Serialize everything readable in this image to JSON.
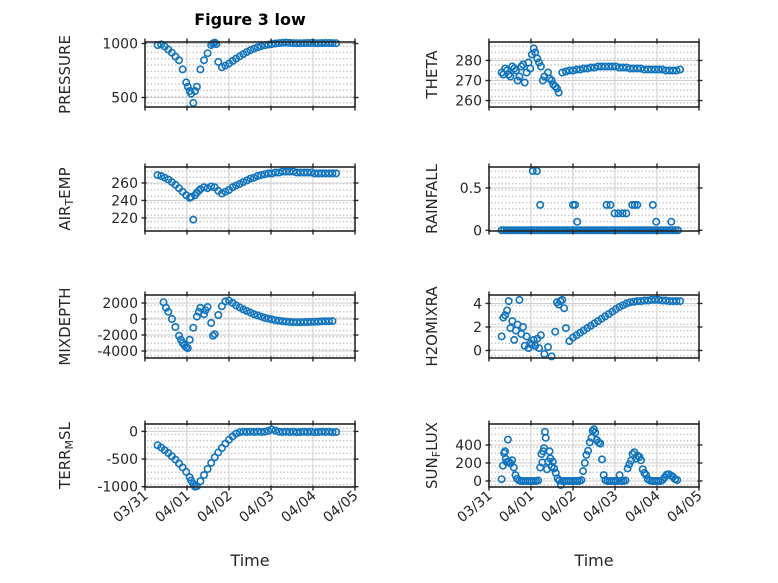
{
  "figure": {
    "title": "Figure 3 low",
    "background_color": "#ffffff",
    "marker_color": "#1274bd",
    "frame_color": "#262626",
    "major_grid_color": "#cfcfcf",
    "minor_grid_color": "#c9c9c9",
    "text_color": "#262626",
    "grid": "major solid + minor dotted lattice",
    "marker_style": "open circle"
  },
  "x_axis": {
    "label": "Time",
    "tick_labels": [
      "03/31",
      "04/01",
      "04/02",
      "04/03",
      "04/04",
      "04/05"
    ],
    "tick_values": [
      0,
      1,
      2,
      3,
      4,
      5
    ],
    "range_days": [
      0,
      5
    ]
  },
  "chart_data": [
    {
      "id": "pressure",
      "type": "scatter",
      "row": 0,
      "col": 0,
      "ylabel": "PRESSURE",
      "ylabel_parts": [
        {
          "t": "PRESSURE",
          "sub": false
        }
      ],
      "ytick_labels": [
        "500",
        "1000"
      ],
      "ytick_values": [
        500,
        1000
      ],
      "ylim": [
        412,
        1014
      ],
      "x": [
        0.3,
        0.385,
        0.47,
        0.555,
        0.64,
        0.725,
        0.81,
        0.895,
        0.98,
        1.02,
        1.065,
        1.1,
        1.15,
        1.19,
        1.235,
        1.32,
        1.405,
        1.49,
        1.575,
        1.62,
        1.66,
        1.7,
        1.745,
        1.83,
        1.915,
        2.0,
        2.085,
        2.17,
        2.255,
        2.34,
        2.425,
        2.51,
        2.595,
        2.68,
        2.765,
        2.85,
        2.935,
        3.02,
        3.105,
        3.19,
        3.275,
        3.36,
        3.445,
        3.53,
        3.615,
        3.7,
        3.785,
        3.87,
        3.955,
        4.04,
        4.125,
        4.21,
        4.295,
        4.38,
        4.465,
        4.55
      ],
      "y": [
        985,
        992,
        972,
        945,
        915,
        880,
        845,
        760,
        640,
        600,
        560,
        535,
        450,
        560,
        600,
        760,
        845,
        910,
        985,
        1000,
        1008,
        995,
        830,
        780,
        795,
        815,
        838,
        860,
        882,
        902,
        920,
        938,
        953,
        965,
        975,
        983,
        990,
        995,
        1000,
        1004,
        1007,
        1008,
        1006,
        1004,
        1003,
        1003,
        1004,
        1005,
        1005,
        1004,
        1003,
        1004,
        1005,
        1005,
        1004,
        1003
      ]
    },
    {
      "id": "theta",
      "type": "scatter",
      "row": 0,
      "col": 1,
      "ylabel": "THETA",
      "ylabel_parts": [
        {
          "t": "THETA",
          "sub": false
        }
      ],
      "ytick_labels": [
        "260",
        "270",
        "280"
      ],
      "ytick_values": [
        260,
        270,
        280
      ],
      "ylim": [
        256.8,
        289.2
      ],
      "x": [
        0.3,
        0.34,
        0.385,
        0.43,
        0.47,
        0.51,
        0.555,
        0.6,
        0.64,
        0.68,
        0.725,
        0.77,
        0.81,
        0.85,
        0.895,
        0.94,
        0.98,
        1.02,
        1.065,
        1.1,
        1.15,
        1.19,
        1.235,
        1.28,
        1.32,
        1.405,
        1.44,
        1.49,
        1.53,
        1.575,
        1.62,
        1.66,
        1.745,
        1.83,
        1.915,
        2.0,
        2.085,
        2.17,
        2.255,
        2.34,
        2.425,
        2.51,
        2.595,
        2.68,
        2.765,
        2.85,
        2.935,
        3.02,
        3.105,
        3.19,
        3.275,
        3.36,
        3.445,
        3.53,
        3.615,
        3.7,
        3.785,
        3.87,
        3.955,
        4.04,
        4.125,
        4.21,
        4.295,
        4.38,
        4.465,
        4.55
      ],
      "y": [
        274,
        273,
        276,
        275,
        273,
        272,
        277,
        276,
        275,
        270,
        272,
        277,
        278,
        269,
        274,
        279,
        276,
        283,
        286,
        284,
        281,
        279,
        277,
        270,
        272,
        274,
        271,
        270,
        268,
        267,
        266,
        264,
        274,
        274.5,
        275,
        275,
        275.5,
        275.5,
        276,
        276,
        276.5,
        276.5,
        277,
        277,
        277,
        277,
        277,
        277,
        276.5,
        276.5,
        276.5,
        276,
        276,
        276,
        276,
        275.5,
        275.5,
        275.5,
        275.5,
        275.5,
        275.5,
        275,
        275,
        275,
        275,
        275.5
      ]
    },
    {
      "id": "airtemp",
      "type": "scatter",
      "row": 1,
      "col": 0,
      "ylabel": "AIR_TEMP",
      "ylabel_parts": [
        {
          "t": "AIR",
          "sub": false
        },
        {
          "t": "T",
          "sub": true
        },
        {
          "t": "EMP",
          "sub": false
        }
      ],
      "ytick_labels": [
        "220",
        "240",
        "260"
      ],
      "ytick_values": [
        220,
        240,
        260
      ],
      "ylim": [
        205,
        278.3
      ],
      "x": [
        0.3,
        0.385,
        0.47,
        0.555,
        0.64,
        0.725,
        0.81,
        0.895,
        0.98,
        1.065,
        1.1,
        1.15,
        1.19,
        1.235,
        1.28,
        1.32,
        1.405,
        1.49,
        1.575,
        1.66,
        1.745,
        1.83,
        1.915,
        2.0,
        2.085,
        2.17,
        2.255,
        2.34,
        2.425,
        2.51,
        2.595,
        2.68,
        2.765,
        2.85,
        2.935,
        3.02,
        3.105,
        3.19,
        3.275,
        3.36,
        3.445,
        3.53,
        3.615,
        3.7,
        3.785,
        3.87,
        3.955,
        4.04,
        4.125,
        4.21,
        4.295,
        4.38,
        4.465,
        4.55
      ],
      "y": [
        269,
        268,
        266,
        264,
        261,
        258,
        254,
        250,
        246,
        243,
        244,
        218,
        246,
        249,
        251,
        253,
        255,
        254,
        256,
        255,
        251,
        248,
        250,
        252,
        255,
        257,
        259,
        261,
        263,
        265,
        266,
        268,
        269,
        270,
        271,
        271,
        272,
        272,
        273,
        273,
        273,
        273,
        272,
        272,
        272,
        272,
        272,
        271,
        271,
        271,
        271,
        271,
        271,
        271
      ]
    },
    {
      "id": "rainfall",
      "type": "scatter",
      "row": 1,
      "col": 1,
      "ylabel": "RAINFALL",
      "ylabel_parts": [
        {
          "t": "RAINFALL",
          "sub": false
        }
      ],
      "ytick_labels": [
        "0",
        "0.5"
      ],
      "ytick_values": [
        0,
        0.5
      ],
      "ylim": [
        -0.008,
        0.747
      ],
      "x": [
        0.3,
        0.36,
        0.42,
        0.48,
        0.54,
        0.6,
        0.66,
        0.72,
        0.78,
        0.84,
        0.9,
        0.96,
        1.02,
        1.08,
        1.14,
        1.2,
        1.26,
        1.32,
        1.38,
        1.44,
        1.5,
        1.56,
        1.62,
        1.68,
        1.74,
        1.8,
        1.86,
        1.92,
        1.98,
        2.04,
        2.1,
        2.16,
        2.22,
        2.28,
        2.34,
        2.4,
        2.46,
        2.52,
        2.58,
        2.64,
        2.7,
        2.76,
        2.82,
        2.88,
        2.94,
        3.0,
        3.06,
        3.12,
        3.18,
        3.24,
        3.3,
        3.36,
        3.42,
        3.48,
        3.54,
        3.6,
        3.66,
        3.72,
        3.78,
        3.84,
        3.9,
        3.96,
        4.02,
        4.08,
        4.14,
        4.2,
        4.26,
        4.32,
        4.38,
        4.44,
        4.5,
        1.04,
        1.14,
        1.22,
        2.0,
        2.05,
        2.1,
        2.8,
        2.89,
        2.99,
        3.08,
        3.18,
        3.27,
        3.41,
        3.47,
        3.53,
        3.9,
        3.98,
        4.34
      ],
      "y": [
        0,
        0,
        0,
        0,
        0,
        0,
        0,
        0,
        0,
        0,
        0,
        0,
        0,
        0,
        0,
        0,
        0,
        0,
        0,
        0,
        0,
        0,
        0,
        0,
        0,
        0,
        0,
        0,
        0,
        0,
        0,
        0,
        0,
        0,
        0,
        0,
        0,
        0,
        0,
        0,
        0,
        0,
        0,
        0,
        0,
        0,
        0,
        0,
        0,
        0,
        0,
        0,
        0,
        0,
        0,
        0,
        0,
        0,
        0,
        0,
        0,
        0,
        0,
        0,
        0,
        0,
        0,
        0,
        0,
        0,
        0,
        0.7,
        0.7,
        0.3,
        0.3,
        0.3,
        0.1,
        0.3,
        0.3,
        0.2,
        0.2,
        0.2,
        0.2,
        0.3,
        0.3,
        0.3,
        0.3,
        0.1,
        0.1
      ]
    },
    {
      "id": "mixdepth",
      "type": "scatter",
      "row": 2,
      "col": 0,
      "ylabel": "MIXDEPTH",
      "ylabel_parts": [
        {
          "t": "MIXDEPTH",
          "sub": false
        }
      ],
      "ytick_labels": [
        "-4000",
        "-2000",
        "0",
        "2000"
      ],
      "ytick_values": [
        -4000,
        -2000,
        0,
        2000
      ],
      "ylim": [
        -4875,
        3000
      ],
      "x": [
        0.44,
        0.5,
        0.555,
        0.64,
        0.725,
        0.81,
        0.855,
        0.895,
        0.94,
        0.98,
        1.02,
        1.065,
        1.15,
        1.235,
        1.28,
        1.32,
        1.405,
        1.44,
        1.49,
        1.575,
        1.62,
        1.66,
        1.745,
        1.83,
        1.915,
        2.0,
        2.085,
        2.17,
        2.255,
        2.34,
        2.425,
        2.51,
        2.595,
        2.68,
        2.765,
        2.85,
        2.935,
        3.02,
        3.105,
        3.19,
        3.275,
        3.36,
        3.445,
        3.53,
        3.615,
        3.7,
        3.785,
        3.87,
        3.955,
        4.04,
        4.125,
        4.21,
        4.295,
        4.38,
        4.465
      ],
      "y": [
        2100,
        1400,
        900,
        0,
        -1000,
        -2100,
        -2600,
        -3000,
        -3300,
        -3500,
        -3650,
        -2600,
        -1100,
        300,
        900,
        1400,
        600,
        1100,
        1500,
        -500,
        -2100,
        -1900,
        500,
        1600,
        2200,
        2300,
        2000,
        1700,
        1450,
        1200,
        1000,
        800,
        600,
        450,
        300,
        150,
        50,
        -50,
        -150,
        -220,
        -280,
        -330,
        -360,
        -390,
        -400,
        -400,
        -390,
        -380,
        -360,
        -340,
        -320,
        -300,
        -290,
        -280,
        -260
      ]
    },
    {
      "id": "h2omixra",
      "type": "scatter",
      "row": 2,
      "col": 1,
      "ylabel": "H2OMIXRA",
      "ylabel_parts": [
        {
          "t": "H2OMIXRA",
          "sub": false
        }
      ],
      "ytick_labels": [
        "0",
        "2",
        "4"
      ],
      "ytick_values": [
        0,
        2,
        4
      ],
      "ylim": [
        -0.64,
        4.72
      ],
      "x": [
        0.3,
        0.34,
        0.385,
        0.43,
        0.47,
        0.51,
        0.555,
        0.6,
        0.64,
        0.68,
        0.725,
        0.77,
        0.81,
        0.85,
        0.895,
        0.94,
        0.98,
        1.02,
        1.065,
        1.1,
        1.15,
        1.19,
        1.235,
        1.32,
        1.405,
        1.49,
        1.575,
        1.62,
        1.66,
        1.7,
        1.745,
        1.79,
        1.83,
        1.915,
        2.0,
        2.085,
        2.17,
        2.255,
        2.34,
        2.425,
        2.51,
        2.595,
        2.68,
        2.765,
        2.85,
        2.935,
        3.02,
        3.105,
        3.19,
        3.275,
        3.36,
        3.445,
        3.53,
        3.615,
        3.7,
        3.785,
        3.87,
        3.955,
        4.04,
        4.125,
        4.21,
        4.295,
        4.38,
        4.465,
        4.55
      ],
      "y": [
        1.2,
        2.8,
        3.0,
        3.4,
        4.2,
        1.9,
        2.5,
        0.9,
        1.7,
        2.2,
        4.3,
        1.4,
        2.0,
        0.4,
        1.2,
        0.2,
        0.6,
        0.5,
        0.9,
        0.4,
        1.0,
        0.2,
        1.3,
        -0.3,
        0.3,
        -0.5,
        1.6,
        4.1,
        3.9,
        4.2,
        4.3,
        3.6,
        1.9,
        0.8,
        1.1,
        1.3,
        1.5,
        1.7,
        1.9,
        2.1,
        2.3,
        2.5,
        2.7,
        2.9,
        3.1,
        3.3,
        3.5,
        3.7,
        3.85,
        4.0,
        4.1,
        4.15,
        4.2,
        4.2,
        4.25,
        4.25,
        4.3,
        4.3,
        4.3,
        4.25,
        4.25,
        4.2,
        4.2,
        4.2,
        4.2
      ]
    },
    {
      "id": "terrmsl",
      "type": "scatter",
      "row": 3,
      "col": 0,
      "ylabel": "TERR_MSL",
      "ylabel_parts": [
        {
          "t": "TERR",
          "sub": false
        },
        {
          "t": "M",
          "sub": true
        },
        {
          "t": "SL",
          "sub": false
        }
      ],
      "ytick_labels": [
        "-1000",
        "-500",
        "0"
      ],
      "ytick_values": [
        -1000,
        -500,
        0
      ],
      "ylim": [
        -1005,
        134
      ],
      "x": [
        0.3,
        0.385,
        0.47,
        0.555,
        0.64,
        0.725,
        0.81,
        0.895,
        0.98,
        1.065,
        1.1,
        1.15,
        1.19,
        1.235,
        1.32,
        1.405,
        1.49,
        1.575,
        1.66,
        1.745,
        1.83,
        1.915,
        2.0,
        2.085,
        2.17,
        2.255,
        2.34,
        2.425,
        2.51,
        2.595,
        2.68,
        2.765,
        2.85,
        2.935,
        3.02,
        3.105,
        3.19,
        3.275,
        3.36,
        3.445,
        3.53,
        3.615,
        3.7,
        3.785,
        3.87,
        3.955,
        4.04,
        4.125,
        4.21,
        4.295,
        4.38,
        4.465,
        4.55
      ],
      "y": [
        -250,
        -290,
        -340,
        -390,
        -450,
        -510,
        -580,
        -650,
        -730,
        -830,
        -890,
        -950,
        -1000,
        -990,
        -900,
        -790,
        -680,
        -570,
        -470,
        -380,
        -300,
        -220,
        -150,
        -90,
        -40,
        -15,
        -5,
        -10,
        -5,
        -10,
        -5,
        -10,
        -5,
        10,
        35,
        15,
        -5,
        -10,
        -5,
        -10,
        -5,
        -15,
        -10,
        -5,
        -10,
        -5,
        -15,
        -10,
        -5,
        -10,
        -5,
        -15,
        -10
      ]
    },
    {
      "id": "sunflux",
      "type": "scatter",
      "row": 3,
      "col": 1,
      "ylabel": "SUN_FLUX",
      "ylabel_parts": [
        {
          "t": "SUN",
          "sub": false
        },
        {
          "t": "F",
          "sub": true
        },
        {
          "t": "LUX",
          "sub": false
        }
      ],
      "ytick_labels": [
        "0",
        "200",
        "400"
      ],
      "ytick_values": [
        0,
        200,
        400
      ],
      "ylim": [
        -67,
        633
      ],
      "x": [
        0.3,
        0.33,
        0.36,
        0.38,
        0.4,
        0.42,
        0.45,
        0.47,
        0.51,
        0.55,
        0.59,
        0.63,
        0.67,
        0.72,
        0.77,
        0.82,
        0.87,
        0.92,
        0.97,
        1.02,
        1.07,
        1.12,
        1.17,
        1.22,
        1.25,
        1.27,
        1.29,
        1.31,
        1.33,
        1.35,
        1.38,
        1.41,
        1.44,
        1.46,
        1.49,
        1.52,
        1.55,
        1.59,
        1.63,
        1.67,
        1.71,
        1.75,
        1.8,
        1.85,
        1.9,
        1.95,
        2.0,
        2.05,
        2.1,
        2.15,
        2.2,
        2.24,
        2.28,
        2.32,
        2.36,
        2.4,
        2.44,
        2.47,
        2.5,
        2.53,
        2.57,
        2.61,
        2.65,
        2.69,
        2.73,
        2.77,
        2.82,
        2.87,
        2.92,
        2.97,
        3.02,
        3.07,
        3.11,
        3.15,
        3.2,
        3.25,
        3.3,
        3.34,
        3.38,
        3.42,
        3.46,
        3.5,
        3.54,
        3.58,
        3.62,
        3.66,
        3.7,
        3.74,
        3.78,
        3.83,
        3.88,
        3.93,
        3.98,
        4.03,
        4.08,
        4.13,
        4.18,
        4.23,
        4.28,
        4.33,
        4.38,
        4.43,
        4.48
      ],
      "y": [
        20,
        170,
        310,
        330,
        245,
        210,
        460,
        215,
        195,
        230,
        150,
        65,
        25,
        5,
        0,
        0,
        0,
        0,
        0,
        0,
        0,
        0,
        5,
        150,
        300,
        205,
        330,
        365,
        545,
        480,
        130,
        215,
        330,
        250,
        160,
        215,
        140,
        90,
        30,
        5,
        -45,
        0,
        0,
        0,
        0,
        0,
        0,
        0,
        0,
        0,
        10,
        110,
        200,
        290,
        335,
        430,
        480,
        555,
        575,
        540,
        455,
        430,
        415,
        240,
        65,
        10,
        0,
        0,
        0,
        0,
        0,
        0,
        65,
        0,
        0,
        5,
        140,
        185,
        225,
        300,
        320,
        250,
        280,
        265,
        230,
        130,
        90,
        65,
        20,
        5,
        0,
        0,
        0,
        0,
        0,
        10,
        40,
        70,
        75,
        60,
        45,
        20,
        10
      ]
    }
  ]
}
